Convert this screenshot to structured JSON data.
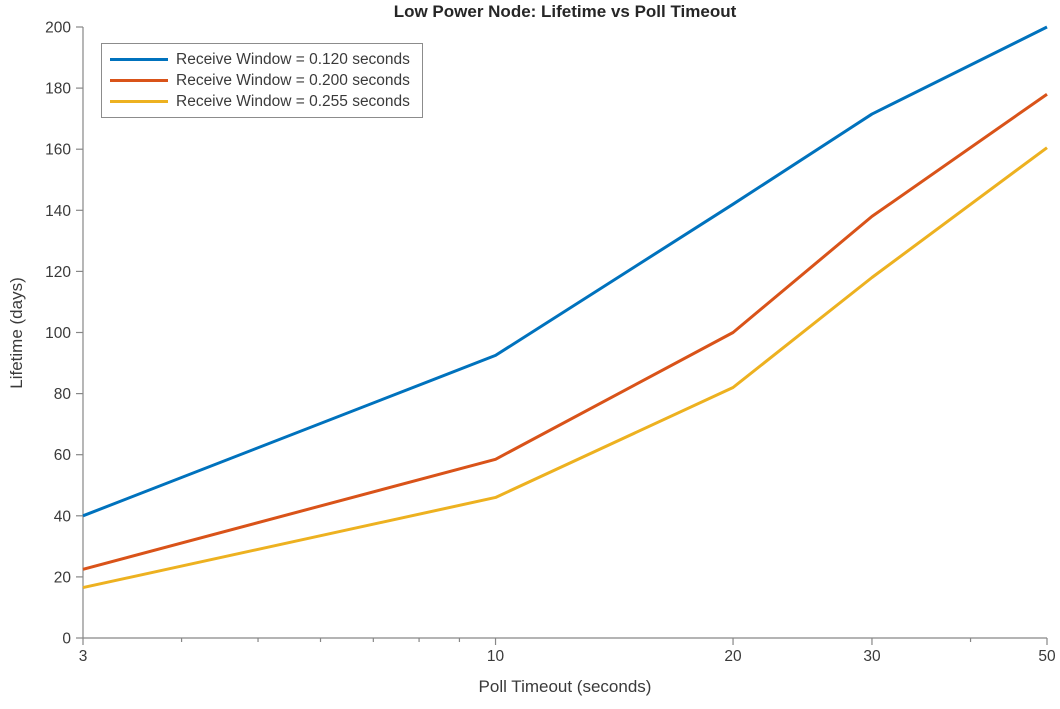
{
  "chart_data": {
    "type": "line",
    "title": "Low Power Node: Lifetime vs Poll Timeout",
    "xlabel": "Poll Timeout (seconds)",
    "ylabel": "Lifetime (days)",
    "x_scale": "log",
    "xlim": [
      3,
      50
    ],
    "ylim": [
      0,
      200
    ],
    "x_ticks": [
      3,
      10,
      20,
      30,
      50
    ],
    "x_minor_ticks": [
      4,
      5,
      6,
      7,
      8,
      9,
      40
    ],
    "y_ticks": [
      0,
      20,
      40,
      60,
      80,
      100,
      120,
      140,
      160,
      180,
      200
    ],
    "x": [
      3,
      10,
      20,
      30,
      50
    ],
    "series": [
      {
        "name": "Receive Window = 0.120 seconds",
        "color": "#0072BD",
        "values": [
          40,
          92.5,
          142,
          171.5,
          200
        ]
      },
      {
        "name": "Receive Window = 0.200 seconds",
        "color": "#D95319",
        "values": [
          22.5,
          58.5,
          100,
          138,
          178
        ]
      },
      {
        "name": "Receive Window = 0.255 seconds",
        "color": "#EDB120",
        "values": [
          16.5,
          46,
          82,
          118,
          160.5
        ]
      }
    ],
    "legend_position": "top-left",
    "grid": false,
    "axis_color": "#878787",
    "text_color": "#3a3a3a",
    "line_width": 3
  }
}
